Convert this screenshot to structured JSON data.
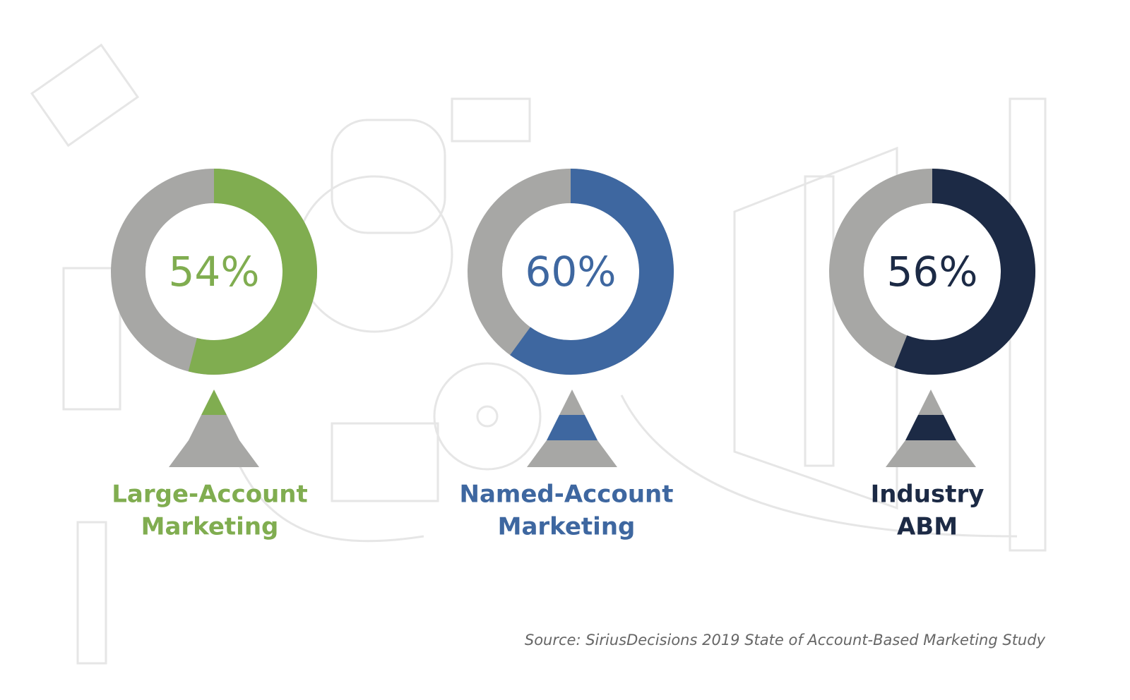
{
  "chart_data": [
    {
      "type": "donut",
      "title": [
        "Large-Account",
        "Marketing"
      ],
      "values": [
        54
      ],
      "value_labels": [
        "54%"
      ],
      "color": "#80ad50"
    },
    {
      "type": "donut",
      "title": [
        "Named-Account",
        "Marketing"
      ],
      "values": [
        60
      ],
      "value_labels": [
        "60%"
      ],
      "color": "#3e67a0"
    },
    {
      "type": "donut",
      "title": [
        "Industry",
        "ABM"
      ],
      "values": [
        56
      ],
      "value_labels": [
        "56%"
      ],
      "color": "#1c2a45"
    }
  ],
  "source": "Source: SiriusDecisions 2019 State of Account-Based Marketing Study"
}
